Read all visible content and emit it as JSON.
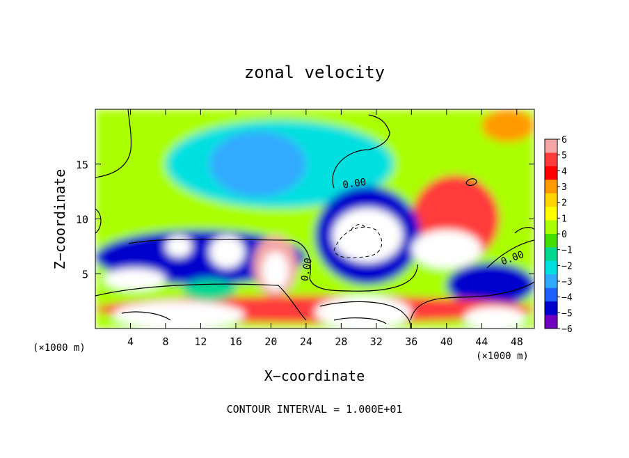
{
  "chart_data": {
    "type": "heatmap",
    "title": "zonal velocity",
    "xlabel": "X−coordinate",
    "ylabel": "Z−coordinate",
    "x_unit_left": "(×1000 m)",
    "x_unit_right": "(×1000 m)",
    "footer": "CONTOUR INTERVAL = 1.000E+01",
    "contour_label": "0.00",
    "xlim": [
      0,
      50
    ],
    "ylim": [
      0,
      20
    ],
    "x_ticks": [
      "4",
      "8",
      "12",
      "16",
      "20",
      "24",
      "28",
      "32",
      "36",
      "40",
      "44",
      "48"
    ],
    "y_ticks": [
      "5",
      "10",
      "15"
    ],
    "colorbar": {
      "min": -6,
      "max": 6,
      "ticks": [
        "6",
        "5",
        "4",
        "3",
        "2",
        "1",
        "0",
        "−1",
        "−2",
        "−3",
        "−4",
        "−5",
        "−6"
      ],
      "colors": [
        "#f4a6a6",
        "#ff3a3a",
        "#ff0000",
        "#ff9a00",
        "#ffd700",
        "#ffff00",
        "#aaff00",
        "#44dd00",
        "#00d890",
        "#00e0e0",
        "#30aaff",
        "#2060ff",
        "#0000cc",
        "#7000c0"
      ]
    },
    "field_regions": [
      {
        "x": [
          0,
          50
        ],
        "y": [
          0,
          20
        ],
        "value": 0.5
      },
      {
        "x": [
          8,
          34
        ],
        "y": [
          11,
          19
        ],
        "value": -2.5
      },
      {
        "x": [
          13,
          24
        ],
        "y": [
          12,
          18
        ],
        "value": -3.2
      },
      {
        "x": [
          44,
          50
        ],
        "y": [
          17,
          20
        ],
        "value": 3
      },
      {
        "x": [
          36,
          46
        ],
        "y": [
          6,
          14
        ],
        "value": 4.5
      },
      {
        "x": [
          25,
          37
        ],
        "y": [
          4,
          13
        ],
        "value": -5
      },
      {
        "x": [
          27,
          35
        ],
        "y": [
          6,
          11
        ],
        "value": -7
      },
      {
        "x": [
          0,
          24
        ],
        "y": [
          4,
          9
        ],
        "value": -4.5
      },
      {
        "x": [
          1,
          8
        ],
        "y": [
          3.5,
          5.5
        ],
        "value": -7
      },
      {
        "x": [
          8,
          11
        ],
        "y": [
          6.5,
          8.5
        ],
        "value": -7
      },
      {
        "x": [
          13,
          17
        ],
        "y": [
          5.5,
          8.5
        ],
        "value": -7
      },
      {
        "x": [
          18,
          23
        ],
        "y": [
          3,
          8.5
        ],
        "value": 6
      },
      {
        "x": [
          19,
          22
        ],
        "y": [
          3.5,
          7
        ],
        "value": 7
      },
      {
        "x": [
          36,
          44
        ],
        "y": [
          5.5,
          9
        ],
        "value": 7
      },
      {
        "x": [
          40,
          50
        ],
        "y": [
          2,
          6
        ],
        "value": -4.5
      },
      {
        "x": [
          0,
          50
        ],
        "y": [
          0.5,
          3
        ],
        "value": 5
      },
      {
        "x": [
          2,
          17
        ],
        "y": [
          0,
          2.5
        ],
        "value": 7
      },
      {
        "x": [
          25,
          36
        ],
        "y": [
          0,
          3
        ],
        "value": 7
      },
      {
        "x": [
          42,
          49
        ],
        "y": [
          0,
          2
        ],
        "value": 7
      },
      {
        "x": [
          10,
          16
        ],
        "y": [
          2.5,
          4.5
        ],
        "value": -1.5
      }
    ]
  }
}
